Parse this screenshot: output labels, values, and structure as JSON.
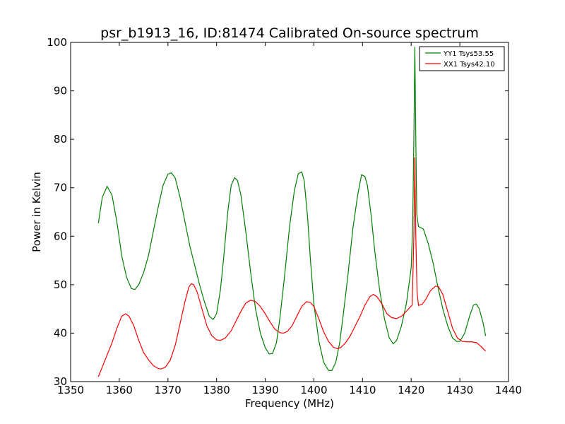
{
  "chart_data": {
    "type": "line",
    "title": "psr_b1913_16, ID:81474 Calibrated On-source spectrum",
    "xlabel": "Frequency (MHz)",
    "ylabel": "Power in Kelvin",
    "xlim": [
      1350,
      1440
    ],
    "ylim": [
      30,
      100
    ],
    "xticks": [
      "1350",
      "1360",
      "1370",
      "1380",
      "1390",
      "1400",
      "1410",
      "1420",
      "1430",
      "1440"
    ],
    "yticks": [
      "30",
      "40",
      "50",
      "60",
      "70",
      "80",
      "90",
      "100"
    ],
    "grid": false,
    "legend_position": "top-right",
    "series": [
      {
        "name": "YY1 Tsys53.55",
        "color": "#008000",
        "points": [
          [
            1355.7,
            62.7
          ],
          [
            1356.5,
            68.0
          ],
          [
            1357.5,
            70.3
          ],
          [
            1358.5,
            68.5
          ],
          [
            1359.5,
            63.0
          ],
          [
            1360.5,
            56.0
          ],
          [
            1361.5,
            51.5
          ],
          [
            1362.5,
            49.2
          ],
          [
            1363.2,
            49.0
          ],
          [
            1364.0,
            50.0
          ],
          [
            1365.0,
            52.5
          ],
          [
            1366.0,
            56.0
          ],
          [
            1367.0,
            61.0
          ],
          [
            1368.0,
            66.0
          ],
          [
            1369.0,
            70.5
          ],
          [
            1370.0,
            72.8
          ],
          [
            1370.7,
            73.1
          ],
          [
            1371.5,
            72.0
          ],
          [
            1372.5,
            68.0
          ],
          [
            1373.5,
            63.0
          ],
          [
            1374.5,
            58.0
          ],
          [
            1375.5,
            54.0
          ],
          [
            1376.5,
            50.0
          ],
          [
            1377.5,
            46.5
          ],
          [
            1378.5,
            43.5
          ],
          [
            1379.3,
            42.8
          ],
          [
            1380.0,
            44.0
          ],
          [
            1380.8,
            49.0
          ],
          [
            1381.5,
            56.0
          ],
          [
            1382.3,
            65.0
          ],
          [
            1383.0,
            70.5
          ],
          [
            1383.7,
            72.1
          ],
          [
            1384.3,
            71.5
          ],
          [
            1385.0,
            68.5
          ],
          [
            1386.0,
            61.0
          ],
          [
            1387.0,
            52.5
          ],
          [
            1388.0,
            45.0
          ],
          [
            1389.0,
            40.0
          ],
          [
            1390.0,
            37.0
          ],
          [
            1390.8,
            35.7
          ],
          [
            1391.5,
            35.8
          ],
          [
            1392.3,
            38.0
          ],
          [
            1393.0,
            43.0
          ],
          [
            1394.0,
            52.0
          ],
          [
            1395.0,
            62.0
          ],
          [
            1396.0,
            69.5
          ],
          [
            1396.8,
            72.9
          ],
          [
            1397.5,
            73.3
          ],
          [
            1398.0,
            71.5
          ],
          [
            1398.7,
            64.0
          ],
          [
            1399.3,
            55.0
          ],
          [
            1400.0,
            46.0
          ],
          [
            1401.0,
            38.5
          ],
          [
            1402.0,
            34.0
          ],
          [
            1403.0,
            32.3
          ],
          [
            1403.7,
            32.3
          ],
          [
            1404.5,
            34.0
          ],
          [
            1405.3,
            38.0
          ],
          [
            1406.0,
            43.5
          ],
          [
            1407.0,
            52.0
          ],
          [
            1408.0,
            61.5
          ],
          [
            1409.0,
            68.5
          ],
          [
            1409.8,
            72.7
          ],
          [
            1410.5,
            72.3
          ],
          [
            1411.0,
            70.5
          ],
          [
            1411.8,
            64.0
          ],
          [
            1412.5,
            57.0
          ],
          [
            1413.5,
            49.0
          ],
          [
            1414.5,
            43.0
          ],
          [
            1415.5,
            39.0
          ],
          [
            1416.3,
            37.8
          ],
          [
            1417.0,
            38.5
          ],
          [
            1418.0,
            41.5
          ],
          [
            1419.0,
            46.0
          ],
          [
            1420.0,
            53.5
          ],
          [
            1420.3,
            62.0
          ],
          [
            1420.55,
            80.0
          ],
          [
            1420.75,
            99.0
          ],
          [
            1420.95,
            80.0
          ],
          [
            1421.15,
            64.5
          ],
          [
            1421.5,
            62.0
          ],
          [
            1422.5,
            61.5
          ],
          [
            1423.5,
            58.5
          ],
          [
            1424.5,
            54.5
          ],
          [
            1425.5,
            49.5
          ],
          [
            1426.5,
            45.0
          ],
          [
            1427.5,
            41.5
          ],
          [
            1428.5,
            39.0
          ],
          [
            1429.3,
            38.3
          ],
          [
            1430.0,
            38.3
          ],
          [
            1431.0,
            40.0
          ],
          [
            1432.0,
            43.5
          ],
          [
            1432.8,
            45.8
          ],
          [
            1433.4,
            46.0
          ],
          [
            1434.0,
            45.0
          ],
          [
            1434.8,
            42.0
          ],
          [
            1435.3,
            39.4
          ]
        ]
      },
      {
        "name": "XX1 Tsys42.10",
        "color": "#ff0000",
        "points": [
          [
            1355.7,
            31.0
          ],
          [
            1356.5,
            33.0
          ],
          [
            1357.5,
            35.5
          ],
          [
            1358.5,
            38.0
          ],
          [
            1359.5,
            41.0
          ],
          [
            1360.5,
            43.5
          ],
          [
            1361.3,
            44.0
          ],
          [
            1362.0,
            43.5
          ],
          [
            1363.0,
            41.5
          ],
          [
            1364.0,
            38.5
          ],
          [
            1365.0,
            36.0
          ],
          [
            1366.0,
            34.5
          ],
          [
            1367.0,
            33.3
          ],
          [
            1368.0,
            32.7
          ],
          [
            1368.6,
            32.6
          ],
          [
            1369.5,
            33.0
          ],
          [
            1370.5,
            34.5
          ],
          [
            1371.5,
            37.5
          ],
          [
            1372.5,
            42.0
          ],
          [
            1373.5,
            46.5
          ],
          [
            1374.3,
            49.5
          ],
          [
            1374.8,
            50.2
          ],
          [
            1375.3,
            50.0
          ],
          [
            1376.0,
            48.5
          ],
          [
            1377.0,
            45.0
          ],
          [
            1378.0,
            41.5
          ],
          [
            1379.0,
            39.5
          ],
          [
            1380.0,
            38.6
          ],
          [
            1380.8,
            38.5
          ],
          [
            1381.8,
            39.0
          ],
          [
            1383.0,
            40.5
          ],
          [
            1384.0,
            42.5
          ],
          [
            1385.0,
            44.5
          ],
          [
            1386.0,
            46.2
          ],
          [
            1387.0,
            46.8
          ],
          [
            1388.0,
            46.5
          ],
          [
            1389.0,
            45.5
          ],
          [
            1390.0,
            44.0
          ],
          [
            1391.0,
            42.3
          ],
          [
            1392.0,
            40.8
          ],
          [
            1393.0,
            40.1
          ],
          [
            1393.7,
            40.0
          ],
          [
            1394.5,
            40.3
          ],
          [
            1395.5,
            41.5
          ],
          [
            1396.5,
            43.5
          ],
          [
            1397.5,
            45.5
          ],
          [
            1398.5,
            46.5
          ],
          [
            1399.3,
            46.3
          ],
          [
            1400.0,
            45.5
          ],
          [
            1401.0,
            43.0
          ],
          [
            1402.0,
            40.3
          ],
          [
            1403.0,
            38.3
          ],
          [
            1404.0,
            37.1
          ],
          [
            1404.8,
            36.8
          ],
          [
            1405.5,
            37.0
          ],
          [
            1406.5,
            38.0
          ],
          [
            1407.5,
            39.5
          ],
          [
            1408.5,
            41.5
          ],
          [
            1409.5,
            43.5
          ],
          [
            1410.5,
            45.8
          ],
          [
            1411.5,
            47.5
          ],
          [
            1412.2,
            48.0
          ],
          [
            1413.0,
            47.5
          ],
          [
            1414.0,
            46.0
          ],
          [
            1415.0,
            44.0
          ],
          [
            1416.0,
            43.2
          ],
          [
            1417.0,
            43.0
          ],
          [
            1418.0,
            43.5
          ],
          [
            1419.0,
            44.5
          ],
          [
            1420.2,
            45.8
          ],
          [
            1420.55,
            60.0
          ],
          [
            1420.75,
            76.2
          ],
          [
            1420.95,
            60.0
          ],
          [
            1421.2,
            48.5
          ],
          [
            1421.5,
            45.7
          ],
          [
            1422.3,
            46.0
          ],
          [
            1423.0,
            47.0
          ],
          [
            1424.0,
            48.8
          ],
          [
            1425.0,
            49.7
          ],
          [
            1425.6,
            49.6
          ],
          [
            1426.5,
            48.0
          ],
          [
            1427.5,
            44.5
          ],
          [
            1428.5,
            41.0
          ],
          [
            1429.5,
            39.0
          ],
          [
            1430.5,
            38.3
          ],
          [
            1431.5,
            38.2
          ],
          [
            1432.5,
            38.2
          ],
          [
            1433.5,
            38.0
          ],
          [
            1434.3,
            37.3
          ],
          [
            1435.3,
            36.3
          ]
        ]
      }
    ]
  }
}
